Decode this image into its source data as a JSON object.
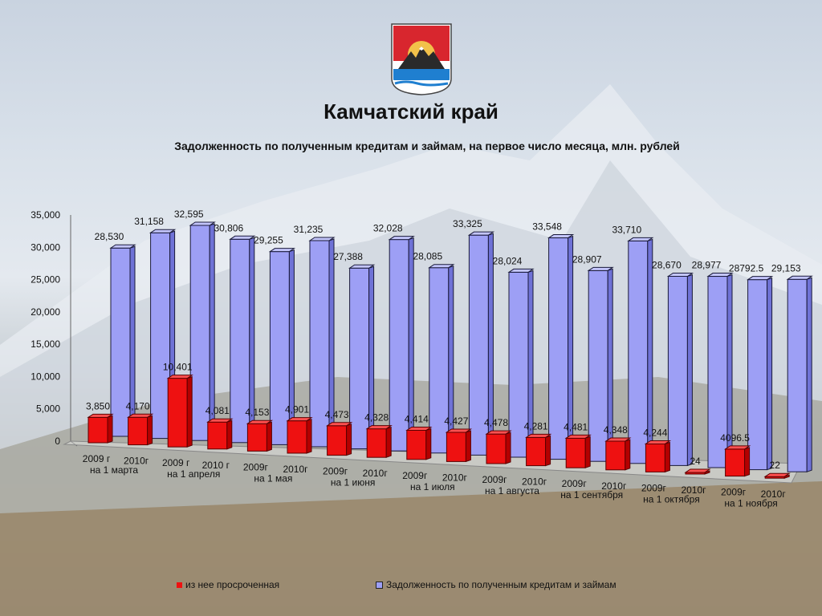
{
  "header": {
    "title": "Камчатский край",
    "subtitle": "Задолженность по полученным кредитам и займам, на первое число месяца, млн. рублей"
  },
  "colors": {
    "total": "#9d9ff5",
    "overdue": "#ee1111"
  },
  "chart_data": {
    "type": "bar",
    "title": "Задолженность по полученным кредитам и займам, на первое число месяца, млн. рублей",
    "ylim": [
      0,
      35000
    ],
    "y_ticks": [
      "0",
      "5,000",
      "10,000",
      "15,000",
      "20,000",
      "25,000",
      "30,000",
      "35,000"
    ],
    "categories": [
      "2009 г на 1 марта",
      "2010г на 1 марта",
      "2009 г на 1 апреля",
      "2010 г на 1 апреля",
      "2009г на 1 мая",
      "2010г на 1 мая",
      "2009г на 1 июня",
      "2010г на 1 июня",
      "2009г на 1 июля",
      "2010г на 1 июля",
      "2009г на 1 августа",
      "2010г на 1 августа",
      "2009г на 1 сентября",
      "2010г на 1 сентября",
      "2009г на 1 октября",
      "2010г на 1 октября",
      "2009г на 1 ноября",
      "2010г на 1 ноября"
    ],
    "category_labels": [
      {
        "year": "2009 г",
        "month": "на 1 марта"
      },
      {
        "year": "2010г",
        "month": ""
      },
      {
        "year": "2009 г",
        "month": "на 1 апреля"
      },
      {
        "year": "2010 г",
        "month": ""
      },
      {
        "year": "2009г",
        "month": "на 1 мая"
      },
      {
        "year": "2010г",
        "month": ""
      },
      {
        "year": "2009г",
        "month": "на 1 июня"
      },
      {
        "year": "2010г",
        "month": ""
      },
      {
        "year": "2009г",
        "month": "на 1 июля"
      },
      {
        "year": "2010г",
        "month": ""
      },
      {
        "year": "2009г",
        "month": "на 1 августа"
      },
      {
        "year": "2010г",
        "month": ""
      },
      {
        "year": "2009г",
        "month": "на 1 сентября"
      },
      {
        "year": "2010г",
        "month": ""
      },
      {
        "year": "2009г",
        "month": "на 1 октября"
      },
      {
        "year": "2010г",
        "month": ""
      },
      {
        "year": "2009г",
        "month": "на 1 ноября"
      },
      {
        "year": "2010г",
        "month": ""
      }
    ],
    "series": [
      {
        "name": "Задолженность по полученным кредитам и займам",
        "values": [
          28530,
          31158,
          32595,
          30806,
          29255,
          31235,
          27388,
          32028,
          28085,
          33325,
          28024,
          33548,
          28907,
          33710,
          28670,
          28977,
          28792.5,
          29153
        ],
        "labels": [
          "28,530",
          "31,158",
          "32,595",
          "30,806",
          "29,255",
          "31,235",
          "27,388",
          "32,028",
          "28,085",
          "33,325",
          "28,024",
          "33,548",
          "28,907",
          "33,710",
          "28,670",
          "28,977",
          "28792.5",
          "29,153"
        ]
      },
      {
        "name": "из нее просроченная",
        "values": [
          3850,
          4170,
          10401,
          4081,
          4153,
          4901,
          4473,
          4328,
          4414,
          4427,
          4478,
          4281,
          4481,
          4348,
          4244,
          24,
          4096.5,
          22
        ],
        "labels": [
          "3,850",
          "4,170",
          "10,401",
          "4,081",
          "4,153",
          "4,901",
          "4,473",
          "4,328",
          "4,414",
          "4,427",
          "4,478",
          "4,281",
          "4,481",
          "4,348",
          "4,244",
          "24",
          "4096.5",
          "22"
        ]
      }
    ],
    "legend": {
      "position": "bottom"
    }
  }
}
